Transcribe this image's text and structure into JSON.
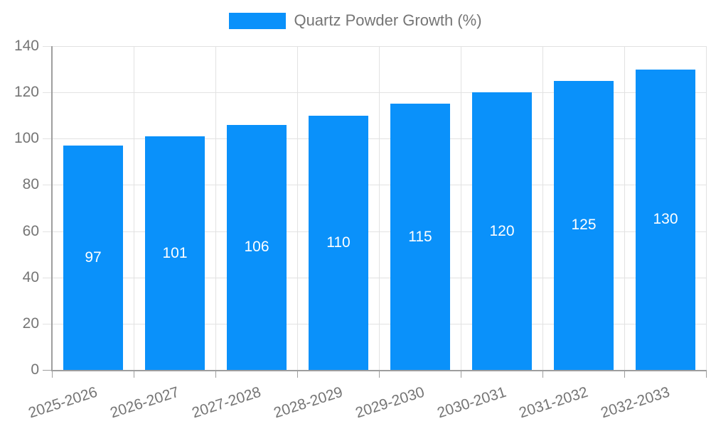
{
  "chart_data": {
    "type": "bar",
    "title": "",
    "categories": [
      "2025-2026",
      "2026-2027",
      "2027-2028",
      "2028-2029",
      "2029-2030",
      "2030-2031",
      "2031-2032",
      "2032-2033"
    ],
    "series": [
      {
        "name": "Quartz Powder Growth (%)",
        "values": [
          97,
          101,
          106,
          110,
          115,
          120,
          125,
          130
        ]
      }
    ],
    "xlabel": "",
    "ylabel": "",
    "ylim": [
      0,
      140
    ],
    "yticks": [
      0,
      20,
      40,
      60,
      80,
      100,
      120,
      140
    ],
    "grid": true,
    "legend_position": "top-center",
    "value_labels": "inside-middle",
    "x_label_rotation_deg": -18,
    "colors": {
      "bar": "#0A91FA",
      "value_label": "#FFFFFF",
      "axis_text": "#757575",
      "grid_line": "#E2E2E2",
      "axis_line": "#9E9E9E",
      "background": "#FFFFFF"
    }
  }
}
